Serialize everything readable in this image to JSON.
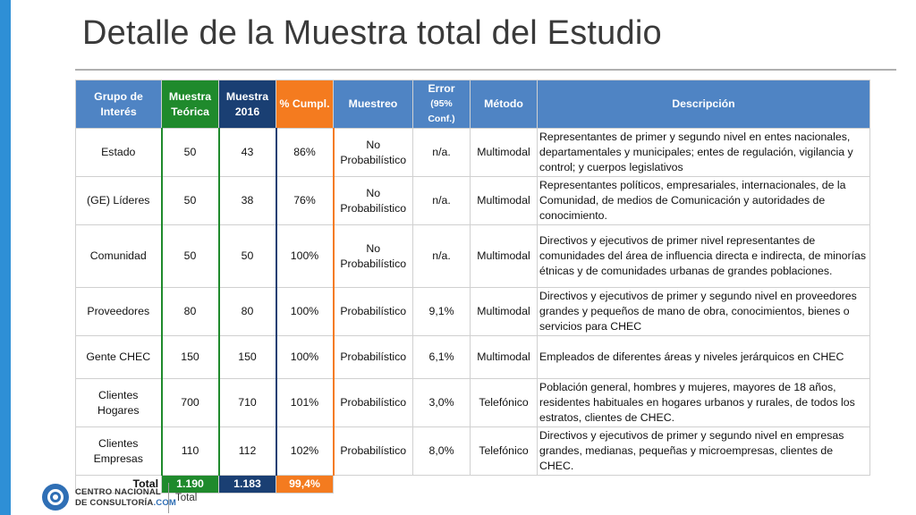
{
  "slide": {
    "title": "Detalle de la Muestra total del Estudio"
  },
  "table": {
    "headers": {
      "grupo": "Grupo de Interés",
      "teorica": "Muestra Teórica",
      "m2016": "Muestra 2016",
      "cumpl": "% Cumpl.",
      "muestreo": "Muestreo",
      "error": "Error",
      "error_sub": "(95% Conf.)",
      "metodo": "Método",
      "descripcion": "Descripción"
    },
    "rows": [
      {
        "grupo": "Estado",
        "teorica": "50",
        "m2016": "43",
        "cumpl": "86%",
        "muestreo": "No Probabilístico",
        "error": "n/a.",
        "metodo": "Multimodal",
        "descripcion": "Representantes de primer y segundo nivel en entes nacionales, departamentales y municipales; entes de regulación, vigilancia y control; y cuerpos legislativos"
      },
      {
        "grupo": "(GE) Líderes",
        "teorica": "50",
        "m2016": "38",
        "cumpl": "76%",
        "muestreo": "No Probabilístico",
        "error": "n/a.",
        "metodo": "Multimodal",
        "descripcion": "Representantes políticos, empresariales, internacionales, de la Comunidad, de medios de Comunicación y autoridades de conocimiento."
      },
      {
        "grupo": "Comunidad",
        "teorica": "50",
        "m2016": "50",
        "cumpl": "100%",
        "muestreo": "No Probabilístico",
        "error": "n/a.",
        "metodo": "Multimodal",
        "descripcion": "Directivos y ejecutivos de primer nivel representantes de comunidades del área de influencia directa e indirecta, de minorías étnicas y de comunidades urbanas de grandes poblaciones."
      },
      {
        "grupo": "Proveedores",
        "teorica": "80",
        "m2016": "80",
        "cumpl": "100%",
        "muestreo": "Probabilístico",
        "error": "9,1%",
        "metodo": "Multimodal",
        "descripcion": "Directivos y ejecutivos de primer y segundo nivel en proveedores  grandes y pequeños de mano de obra, conocimientos, bienes o servicios para CHEC"
      },
      {
        "grupo": "Gente CHEC",
        "teorica": "150",
        "m2016": "150",
        "cumpl": "100%",
        "muestreo": "Probabilístico",
        "error": "6,1%",
        "metodo": "Multimodal",
        "descripcion": "Empleados de diferentes áreas y niveles jerárquicos en CHEC"
      },
      {
        "grupo": "Clientes Hogares",
        "teorica": "700",
        "m2016": "710",
        "cumpl": "101%",
        "muestreo": "Probabilístico",
        "error": "3,0%",
        "metodo": "Telefónico",
        "descripcion": "Población general, hombres y mujeres, mayores de 18 años, residentes habituales en hogares urbanos y rurales, de todos los estratos, clientes de CHEC."
      },
      {
        "grupo": "Clientes Empresas",
        "teorica": "110",
        "m2016": "112",
        "cumpl": "102%",
        "muestreo": "Probabilístico",
        "error": "8,0%",
        "metodo": "Telefónico",
        "descripcion": "Directivos y ejecutivos de primer y segundo nivel en empresas grandes, medianas, pequeñas y microempresas, clientes de CHEC."
      }
    ],
    "total": {
      "label": "Total",
      "teorica": "1.190",
      "m2016": "1.183",
      "cumpl": "99,4%"
    }
  },
  "footer": {
    "brand_line1": "CENTRO NACIONAL",
    "brand_line2": "DE CONSULTORÍA",
    "brand_com": ".COM",
    "text": "Total"
  },
  "colors": {
    "accent_blue": "#4f84c4",
    "green": "#1f8a2c",
    "navy": "#1a3f73",
    "orange": "#f47b1f"
  }
}
